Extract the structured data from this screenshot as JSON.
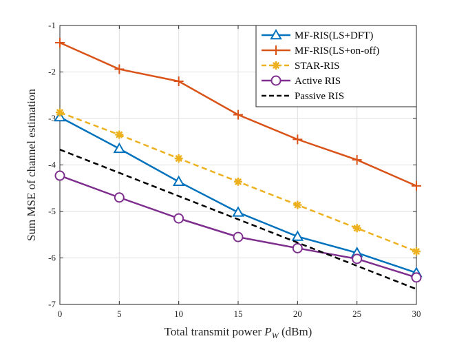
{
  "chart_data": {
    "type": "line",
    "title": "",
    "xlabel": "Total transmit power",
    "xlabel_symbol": "P",
    "xlabel_subscript": "W",
    "xlabel_unit": "(dBm)",
    "ylabel": "Sum MSE of channel estimation",
    "xlim": [
      0,
      30
    ],
    "ylim": [
      -7,
      -1
    ],
    "xticks": [
      0,
      5,
      10,
      15,
      20,
      25,
      30
    ],
    "yticks": [
      -7,
      -6,
      -5,
      -4,
      -3,
      -2,
      -1
    ],
    "xtick_labels": [
      "0",
      "5",
      "10",
      "15",
      "20",
      "25",
      "30"
    ],
    "ytick_labels": [
      "-7",
      "-6",
      "-5",
      "-4",
      "-3",
      "-2",
      "-1"
    ],
    "grid": true,
    "legend_position": "top-right",
    "x": [
      0,
      5,
      10,
      15,
      20,
      25,
      30
    ],
    "series": [
      {
        "name": "MF-RIS(LS+DFT)",
        "values": [
          -2.97,
          -3.65,
          -4.36,
          -5.02,
          -5.54,
          -5.89,
          -6.32
        ],
        "color": "#0072BD",
        "marker": "triangle",
        "dash": "solid"
      },
      {
        "name": "MF-RIS(LS+on-off)",
        "values": [
          -1.37,
          -1.94,
          -2.2,
          -2.92,
          -3.45,
          -3.89,
          -4.45
        ],
        "color": "#D95319",
        "marker": "plus",
        "dash": "solid"
      },
      {
        "name": "STAR-RIS",
        "values": [
          -2.87,
          -3.35,
          -3.86,
          -4.36,
          -4.86,
          -5.36,
          -5.86
        ],
        "color": "#EDB120",
        "marker": "asterisk",
        "dash": "dashed"
      },
      {
        "name": "Active RIS",
        "values": [
          -4.23,
          -4.7,
          -5.15,
          -5.55,
          -5.79,
          -6.02,
          -6.42
        ],
        "color": "#7E2F8E",
        "marker": "circle",
        "dash": "solid"
      },
      {
        "name": "Passive RIS",
        "values": [
          -3.67,
          -4.17,
          -4.67,
          -5.17,
          -5.67,
          -6.17,
          -6.67
        ],
        "color": "#000000",
        "marker": "none",
        "dash": "dashed"
      }
    ]
  }
}
